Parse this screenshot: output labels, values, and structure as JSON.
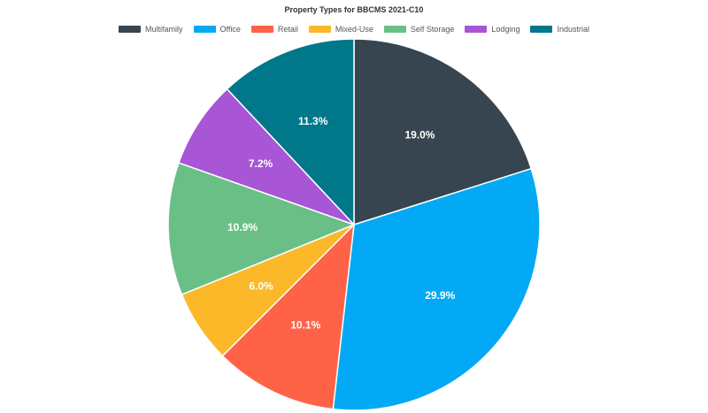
{
  "chart_data": {
    "type": "pie",
    "title": "Property Types for BBCMS 2021-C10",
    "legend_position": "top",
    "slices": [
      {
        "name": "Multifamily",
        "value": 19.0,
        "label": "19.0%",
        "color": "#36454f"
      },
      {
        "name": "Office",
        "value": 29.9,
        "label": "29.9%",
        "color": "#03a9f4"
      },
      {
        "name": "Retail",
        "value": 10.1,
        "label": "10.1%",
        "color": "#ff6347"
      },
      {
        "name": "Mixed-Use",
        "value": 6.0,
        "label": "6.0%",
        "color": "#fbb829"
      },
      {
        "name": "Self Storage",
        "value": 10.9,
        "label": "10.9%",
        "color": "#6abf86"
      },
      {
        "name": "Lodging",
        "value": 7.2,
        "label": "7.2%",
        "color": "#a855d6"
      },
      {
        "name": "Industrial",
        "value": 11.3,
        "label": "11.3%",
        "color": "#00788a"
      }
    ]
  }
}
